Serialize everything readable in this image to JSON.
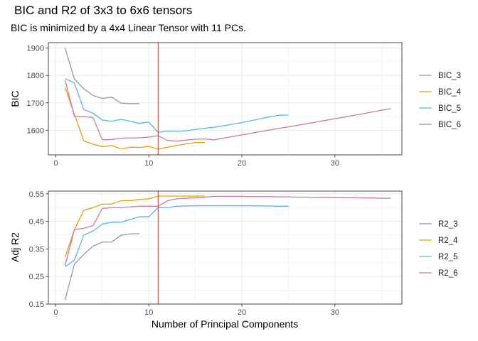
{
  "title": "BIC and R2 of 3x3 to 6x6 tensors",
  "subtitle": "BIC is minimized by a 4x4 Linear Tensor with 11 PCs.",
  "xlabel": "Number of Principal Components",
  "colors": {
    "3": "#999999",
    "4": "#E69F00",
    "5": "#56B4E9",
    "6": "#CC79A7",
    "vline": "#B03A2E"
  },
  "chart_data": [
    {
      "type": "line",
      "ylabel": "BIC",
      "xlim": [
        -0.8,
        37.2
      ],
      "ylim": [
        1510,
        1920
      ],
      "xticks": [
        0,
        10,
        20,
        30
      ],
      "yticks": [
        1600,
        1700,
        1800,
        1900
      ],
      "vline": 11,
      "legend_position": "right",
      "grid": true,
      "series": [
        {
          "name": "BIC_3",
          "key": "3",
          "x": [
            1,
            2,
            3,
            4,
            5,
            6,
            7,
            8,
            9
          ],
          "y": [
            1900,
            1787,
            1752,
            1727,
            1716,
            1721,
            1699,
            1697,
            1697
          ]
        },
        {
          "name": "BIC_4",
          "key": "4",
          "x": [
            1,
            2,
            3,
            4,
            5,
            6,
            7,
            8,
            9,
            10,
            11,
            12,
            13,
            14,
            15,
            16
          ],
          "y": [
            1757,
            1657,
            1562,
            1549,
            1540,
            1544,
            1532,
            1538,
            1537,
            1541,
            1531,
            1538,
            1544,
            1550,
            1555,
            1555
          ]
        },
        {
          "name": "BIC_5",
          "key": "5",
          "x": [
            1,
            2,
            3,
            4,
            5,
            6,
            7,
            8,
            9,
            10,
            11,
            12,
            13,
            14,
            15,
            16,
            17,
            18,
            19,
            20,
            21,
            22,
            23,
            24,
            25
          ],
          "y": [
            1789,
            1772,
            1676,
            1662,
            1637,
            1633,
            1640,
            1633,
            1625,
            1630,
            1592,
            1597,
            1596,
            1598,
            1603,
            1607,
            1611,
            1616,
            1622,
            1628,
            1635,
            1642,
            1649,
            1655,
            1655
          ]
        },
        {
          "name": "BIC_6",
          "key": "6",
          "x": [
            1,
            2,
            3,
            4,
            5,
            6,
            7,
            8,
            9,
            10,
            11,
            12,
            13,
            14,
            15,
            16,
            17,
            18,
            19,
            20,
            21,
            22,
            23,
            24,
            25,
            26,
            27,
            28,
            29,
            30,
            31,
            32,
            33,
            34,
            35,
            36
          ],
          "y": [
            1783,
            1650,
            1650,
            1646,
            1565,
            1566,
            1571,
            1572,
            1572,
            1575,
            1580,
            1563,
            1560,
            1564,
            1567,
            1568,
            1565,
            1571,
            1577,
            1583,
            1589,
            1595,
            1601,
            1607,
            1612,
            1618,
            1624,
            1630,
            1636,
            1642,
            1648,
            1654,
            1660,
            1667,
            1673,
            1679
          ]
        }
      ]
    },
    {
      "type": "line",
      "ylabel": "Adj R2",
      "xlim": [
        -0.8,
        37.2
      ],
      "ylim": [
        0.15,
        0.56
      ],
      "xticks": [
        0,
        10,
        20,
        30
      ],
      "yticks": [
        0.15,
        0.25,
        0.35,
        0.45,
        0.55
      ],
      "ytick_labels": [
        "0.15",
        "0.25",
        "0.35",
        "0.45",
        "0.55"
      ],
      "vline": 11,
      "legend_position": "right",
      "grid": true,
      "series": [
        {
          "name": "R2_3",
          "key": "3",
          "x": [
            1,
            2,
            3,
            4,
            5,
            6,
            7,
            8,
            9
          ],
          "y": [
            0.165,
            0.295,
            0.33,
            0.36,
            0.375,
            0.375,
            0.4,
            0.405,
            0.405
          ]
        },
        {
          "name": "R2_4",
          "key": "4",
          "x": [
            1,
            2,
            3,
            4,
            5,
            6,
            7,
            8,
            9,
            10,
            11,
            12,
            13,
            14,
            15,
            16
          ],
          "y": [
            0.32,
            0.42,
            0.49,
            0.5,
            0.513,
            0.513,
            0.525,
            0.525,
            0.53,
            0.532,
            0.542,
            0.542,
            0.542,
            0.542,
            0.542,
            0.542
          ]
        },
        {
          "name": "R2_5",
          "key": "5",
          "x": [
            1,
            2,
            3,
            4,
            5,
            6,
            7,
            8,
            9,
            10,
            11,
            12,
            13,
            14,
            15,
            16,
            17,
            18,
            19,
            20,
            21,
            22,
            23,
            24,
            25
          ],
          "y": [
            0.285,
            0.31,
            0.4,
            0.415,
            0.44,
            0.447,
            0.447,
            0.457,
            0.467,
            0.467,
            0.5,
            0.5,
            0.505,
            0.506,
            0.507,
            0.507,
            0.507,
            0.507,
            0.507,
            0.507,
            0.507,
            0.506,
            0.506,
            0.505,
            0.505
          ]
        },
        {
          "name": "R2_6",
          "key": "6",
          "x": [
            1,
            2,
            3,
            4,
            5,
            6,
            7,
            8,
            9,
            10,
            11,
            12,
            13,
            14,
            15,
            16,
            17,
            18,
            19,
            20,
            21,
            22,
            23,
            24,
            25,
            26,
            27,
            28,
            29,
            30,
            31,
            32,
            33,
            34,
            35,
            36
          ],
          "y": [
            0.29,
            0.42,
            0.425,
            0.435,
            0.497,
            0.5,
            0.5,
            0.503,
            0.505,
            0.505,
            0.505,
            0.525,
            0.532,
            0.534,
            0.536,
            0.538,
            0.541,
            0.541,
            0.541,
            0.541,
            0.54,
            0.54,
            0.54,
            0.539,
            0.539,
            0.538,
            0.538,
            0.537,
            0.537,
            0.537,
            0.536,
            0.536,
            0.535,
            0.535,
            0.534,
            0.534
          ]
        }
      ]
    }
  ]
}
